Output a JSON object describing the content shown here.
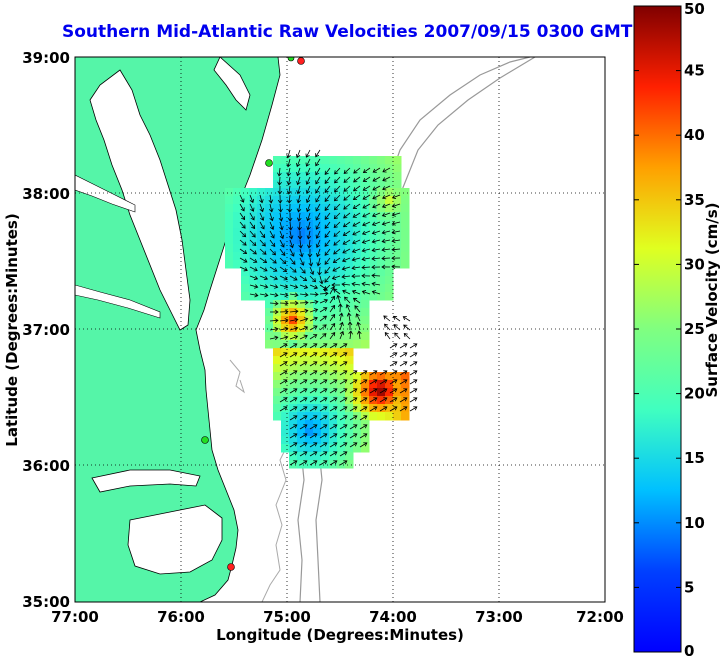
{
  "title": "Southern Mid-Atlantic Raw Velocities 2007/09/15 0300 GMT",
  "xlabel": "Longitude (Degrees:Minutes)",
  "ylabel": "Latitude (Degrees:Minutes)",
  "map": {
    "lon_ticks": [
      "77:00",
      "76:00",
      "75:00",
      "74:00",
      "73:00",
      "72:00"
    ],
    "lat_ticks": [
      "35:00",
      "36:00",
      "37:00",
      "38:00",
      "39:00"
    ],
    "lon_range": [
      -77,
      -72
    ],
    "lat_range": [
      35,
      39
    ],
    "land_color": "#55f5a8",
    "station_colors": {
      "red": "#ff2020",
      "green": "#22dd22"
    }
  },
  "colorbar": {
    "label": "Surface Velocity (cm/s)",
    "ticks": [
      "0",
      "5",
      "10",
      "15",
      "20",
      "25",
      "30",
      "35",
      "40",
      "45",
      "50"
    ],
    "range": [
      0,
      50
    ],
    "colormap": "jet"
  }
}
